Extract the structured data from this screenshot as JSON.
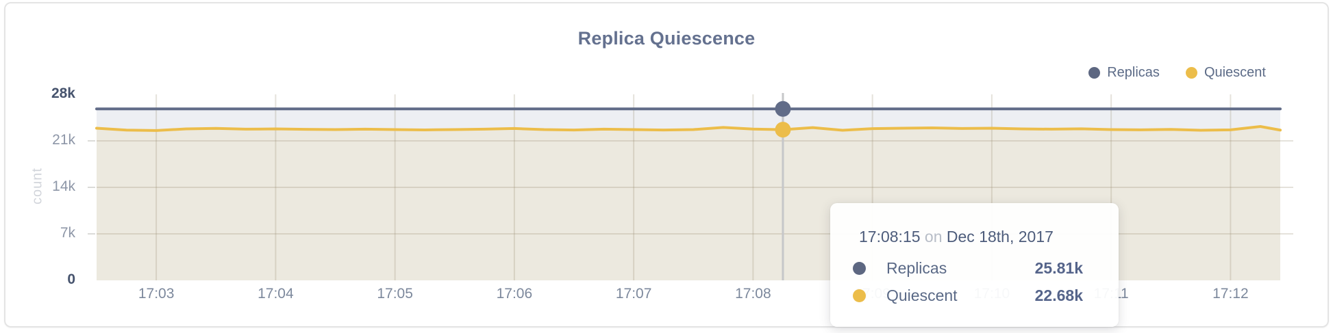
{
  "card_title": "Replica Quiescence",
  "chart_data": {
    "type": "area",
    "title": "Replica Quiescence",
    "xlabel": "",
    "ylabel": "count",
    "ylim": [
      0,
      28000
    ],
    "x_range_seconds": [
      150,
      745
    ],
    "x_base_time": "17:00:00",
    "grid": true,
    "legend_position": "top-right",
    "legend": [
      {
        "label": "Replicas",
        "color": "#5d6781"
      },
      {
        "label": "Quiescent",
        "color": "#ecbd4a"
      }
    ],
    "y_ticks": [
      {
        "label": "28k",
        "value": 28000
      },
      {
        "label": "21k",
        "value": 21000
      },
      {
        "label": "14k",
        "value": 14000
      },
      {
        "label": "7k",
        "value": 7000
      },
      {
        "label": "0",
        "value": 0
      }
    ],
    "x_ticks": [
      {
        "label": "17:03",
        "seconds": 180
      },
      {
        "label": "17:04",
        "seconds": 240
      },
      {
        "label": "17:05",
        "seconds": 300
      },
      {
        "label": "17:06",
        "seconds": 360
      },
      {
        "label": "17:07",
        "seconds": 420
      },
      {
        "label": "17:08",
        "seconds": 480
      },
      {
        "label": "17:09",
        "seconds": 540
      },
      {
        "label": "17:10",
        "seconds": 600
      },
      {
        "label": "17:11",
        "seconds": 660
      },
      {
        "label": "17:12",
        "seconds": 720
      }
    ],
    "x_seconds": [
      150,
      165,
      180,
      195,
      210,
      225,
      240,
      255,
      270,
      285,
      300,
      315,
      330,
      345,
      360,
      375,
      390,
      405,
      420,
      435,
      450,
      465,
      480,
      495,
      510,
      525,
      540,
      555,
      570,
      585,
      600,
      615,
      630,
      645,
      660,
      675,
      690,
      705,
      720,
      735,
      745
    ],
    "series": [
      {
        "name": "Replicas",
        "color": "#616c88",
        "fill": "#edeff3",
        "values": [
          25810,
          25810,
          25810,
          25810,
          25810,
          25810,
          25810,
          25810,
          25810,
          25810,
          25810,
          25810,
          25810,
          25810,
          25810,
          25810,
          25810,
          25810,
          25810,
          25810,
          25810,
          25810,
          25810,
          25810,
          25810,
          25810,
          25810,
          25810,
          25810,
          25810,
          25810,
          25810,
          25810,
          25810,
          25810,
          25810,
          25810,
          25810,
          25810,
          25810,
          25810
        ]
      },
      {
        "name": "Quiescent",
        "color": "#ecbd4a",
        "fill": "#ece9df",
        "values": [
          22900,
          22620,
          22560,
          22800,
          22880,
          22760,
          22800,
          22740,
          22700,
          22760,
          22700,
          22650,
          22700,
          22760,
          22860,
          22700,
          22640,
          22760,
          22700,
          22640,
          22700,
          23020,
          22780,
          22680,
          23000,
          22600,
          22840,
          22900,
          22950,
          22860,
          22900,
          22800,
          22760,
          22820,
          22700,
          22660,
          22720,
          22600,
          22660,
          23160,
          22620
        ]
      }
    ],
    "hover": {
      "seconds": 495,
      "time_label": "17:08:15",
      "values": [
        25810,
        22680
      ]
    }
  },
  "tooltip": {
    "time": "17:08:15",
    "on_word": "on",
    "date": "Dec 18th, 2017",
    "rows": [
      {
        "label": "Replicas",
        "value": "25.81k",
        "color": "#5d6781"
      },
      {
        "label": "Quiescent",
        "value": "22.68k",
        "color": "#ecbd4a"
      }
    ]
  },
  "colors": {
    "title_text": "#64718f",
    "axis_text": "#7c889c",
    "axis_text_emphasis": "#46536d",
    "count_label": "#d2d5db",
    "gridline": "rgba(150,140,112,0.25)",
    "hover_line": "#c6c7c9",
    "card_border": "#e4e4e4"
  }
}
